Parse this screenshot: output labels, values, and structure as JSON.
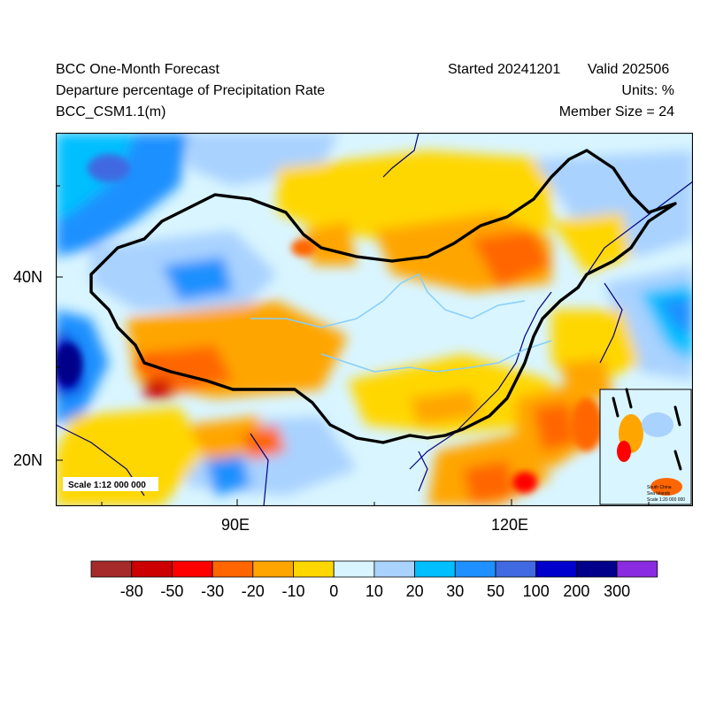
{
  "header": {
    "title": "BCC One-Month Forecast",
    "subtitle": "Departure percentage of Precipitation Rate",
    "model": "BCC_CSM1.1(m)",
    "started": "Started 20241201",
    "valid": "Valid 202506",
    "units": "Units: %",
    "members": "Member Size = 24"
  },
  "map": {
    "lat_ticks": [
      "40N",
      "20N"
    ],
    "lon_ticks": [
      "90E",
      "120E"
    ],
    "scale_label": "Scale 1:12 000 000",
    "inset": {
      "title_line1": "South China",
      "title_line2": "Sea Islands",
      "scale_label": "Scale 1:20 000 000"
    }
  },
  "colorbar": {
    "colors": [
      "#a52a2a",
      "#cc0000",
      "#ff0000",
      "#ff6600",
      "#ffa500",
      "#ffd700",
      "#d9f5ff",
      "#a9d2ff",
      "#00bfff",
      "#1e90ff",
      "#4169e1",
      "#0000cd",
      "#00008b",
      "#8a2be2"
    ],
    "labels": [
      "-80",
      "-50",
      "-30",
      "-20",
      "-10",
      "0",
      "10",
      "20",
      "30",
      "50",
      "100",
      "200",
      "300"
    ]
  }
}
